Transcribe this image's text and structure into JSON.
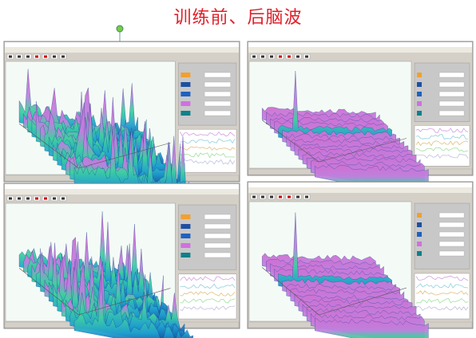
{
  "title": "训练前、后脑波"
}
